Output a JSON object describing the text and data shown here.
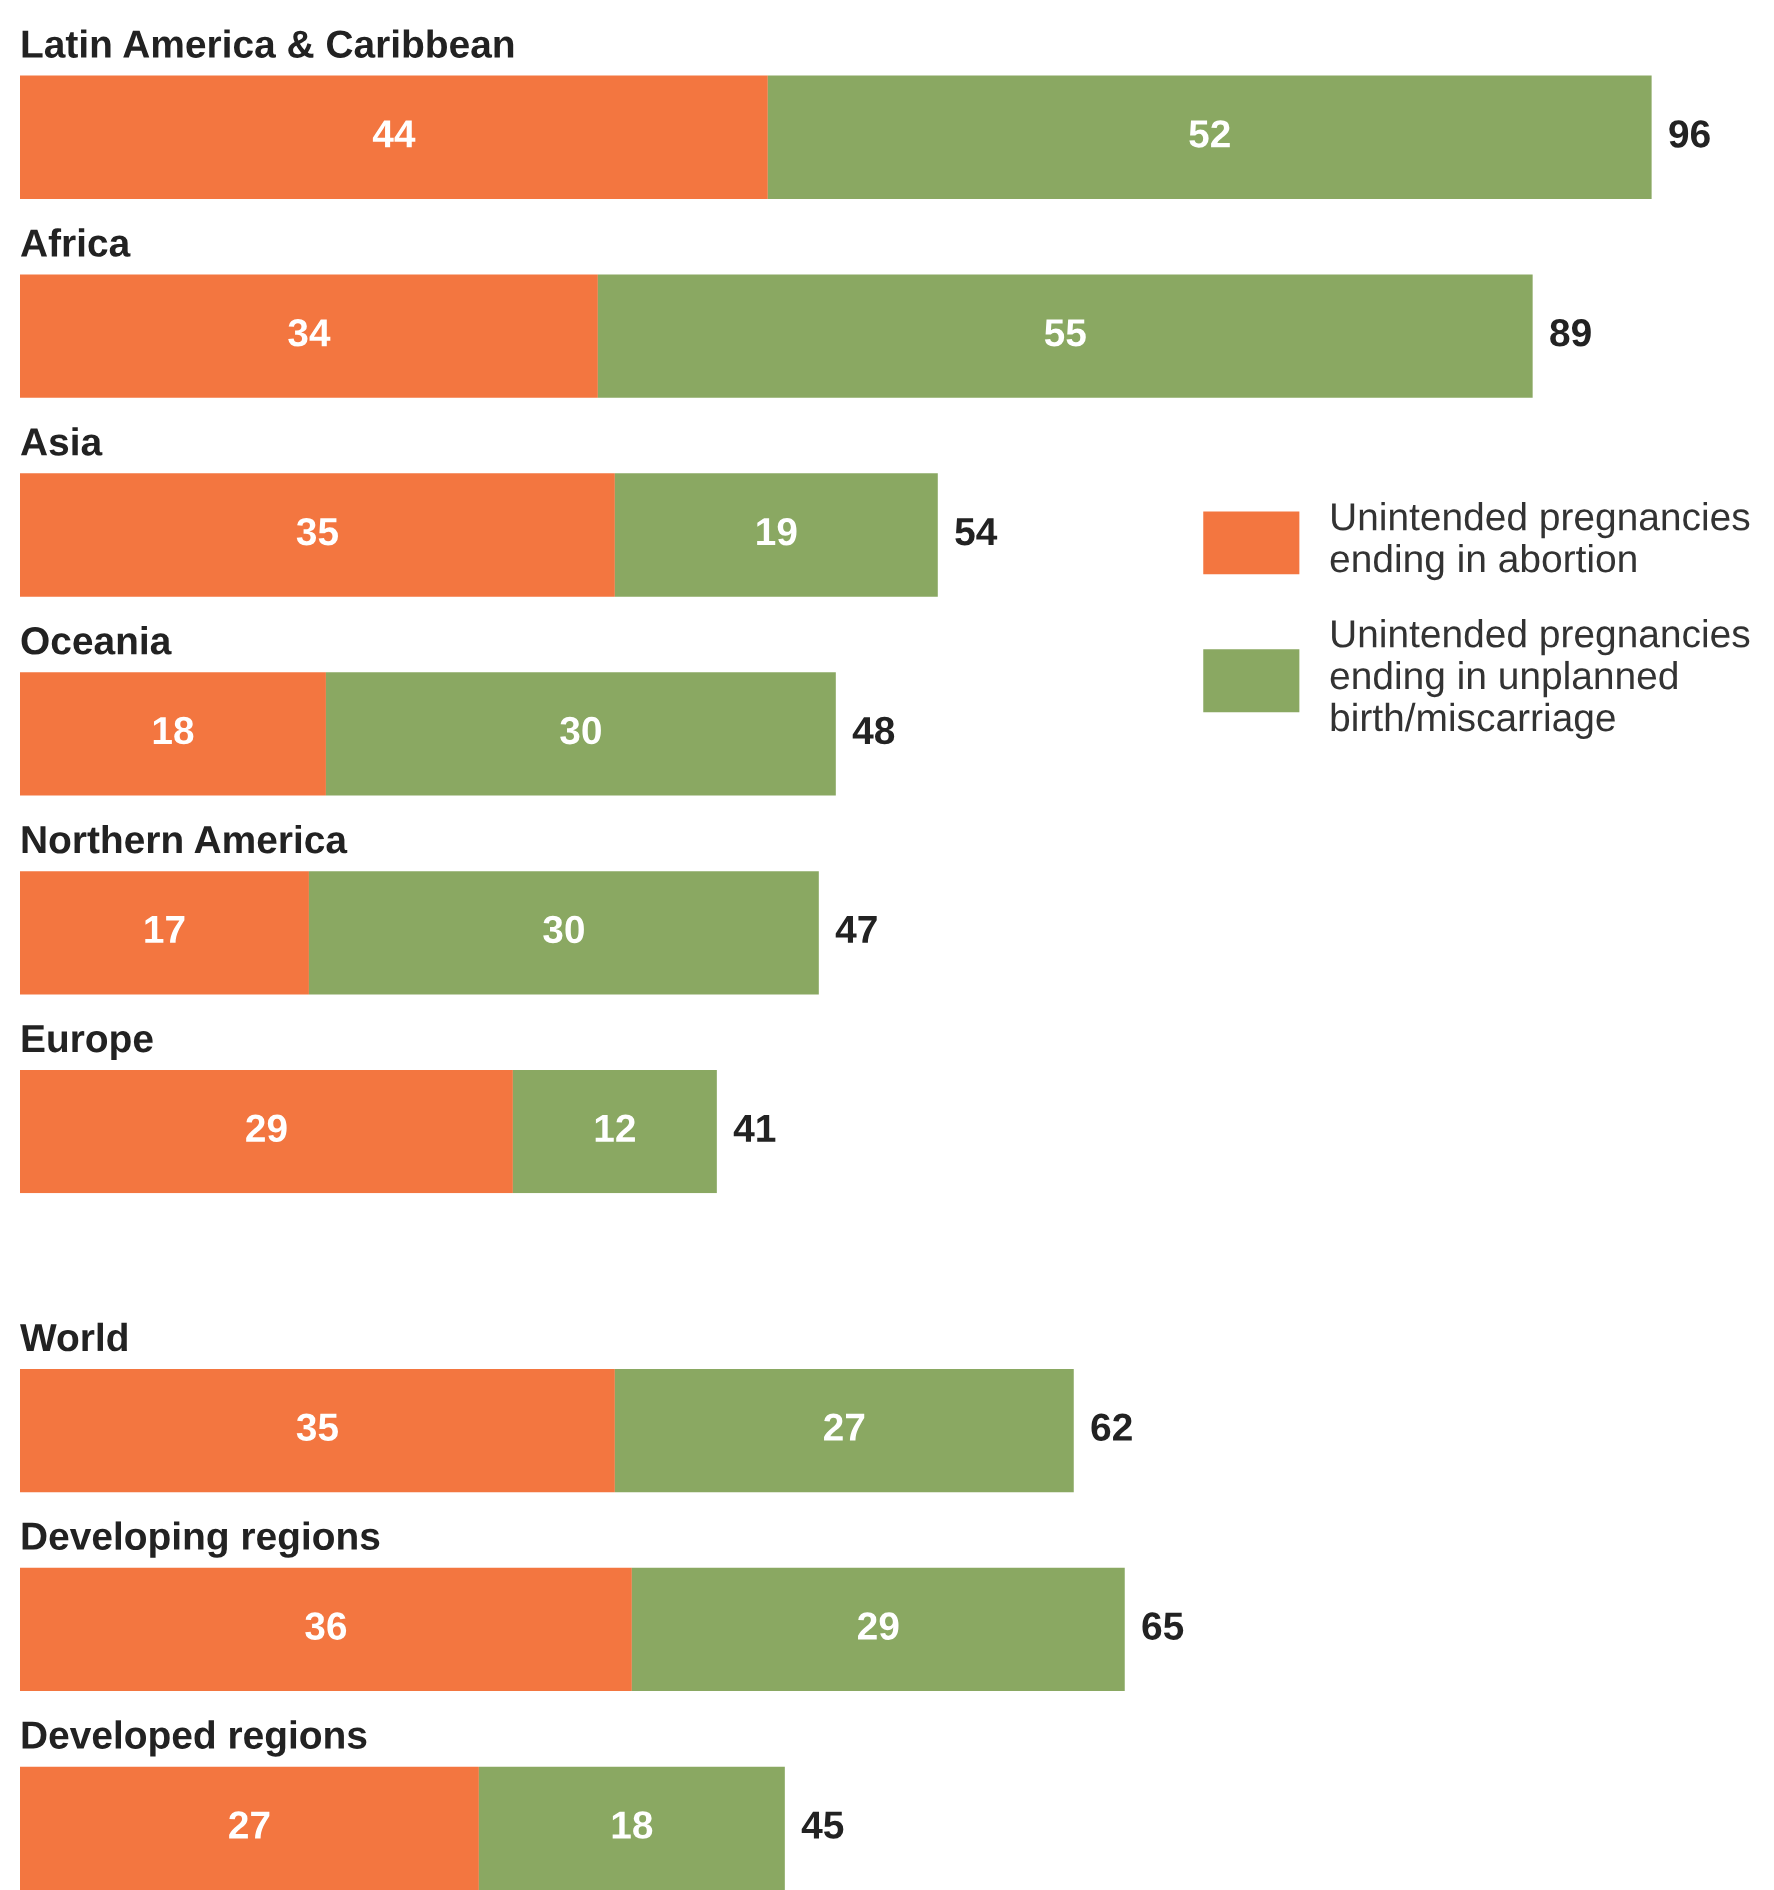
{
  "chart_data": [
    {
      "type": "bar",
      "orientation": "horizontal",
      "stacked": true,
      "data_labels": true,
      "legend": "right",
      "categories": [
        "Latin America & Caribbean",
        "Africa",
        "Asia",
        "Oceania",
        "Northern America",
        "Europe"
      ],
      "series": [
        {
          "name": "Unintended pregnancies\nending in abortion",
          "color": "#f37640",
          "values": [
            44,
            34,
            35,
            18,
            17,
            29
          ]
        },
        {
          "name": "Unintended pregnancies\nending in unplanned\nbirth/miscarriage",
          "color": "#8aa862",
          "values": [
            52,
            55,
            19,
            30,
            30,
            12
          ]
        }
      ],
      "totals": [
        "96",
        "89",
        "54",
        "48",
        "47",
        "41"
      ]
    },
    {
      "type": "bar",
      "orientation": "horizontal",
      "stacked": true,
      "data_labels": true,
      "categories": [
        "World",
        "Developing regions",
        "Developed regions"
      ],
      "series": [
        {
          "color": "#f37640",
          "values": [
            35,
            36,
            27
          ]
        },
        {
          "color": "#8aa862",
          "values": [
            27,
            29,
            18
          ]
        }
      ],
      "totals": [
        "62",
        "65",
        "45"
      ]
    }
  ]
}
